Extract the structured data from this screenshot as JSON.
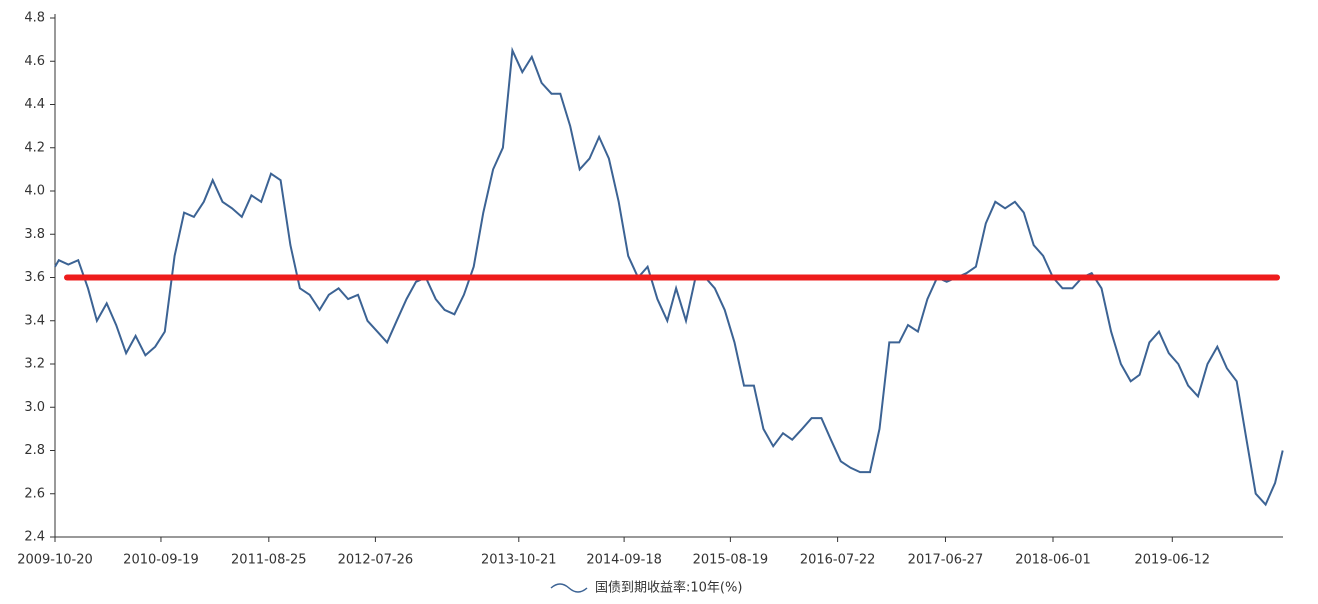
{
  "chart_data": {
    "type": "line",
    "x": [
      "2009-10-20",
      "2009-11-01",
      "2009-12-01",
      "2010-01-01",
      "2010-02-01",
      "2010-03-01",
      "2010-04-01",
      "2010-05-01",
      "2010-06-01",
      "2010-07-01",
      "2010-08-01",
      "2010-09-01",
      "2010-10-01",
      "2010-11-01",
      "2010-12-01",
      "2011-01-01",
      "2011-02-01",
      "2011-03-01",
      "2011-04-01",
      "2011-05-01",
      "2011-06-01",
      "2011-07-01",
      "2011-08-01",
      "2011-09-01",
      "2011-10-01",
      "2011-11-01",
      "2011-12-01",
      "2012-01-01",
      "2012-02-01",
      "2012-03-01",
      "2012-04-01",
      "2012-05-01",
      "2012-06-01",
      "2012-07-01",
      "2012-08-01",
      "2012-09-01",
      "2012-10-01",
      "2012-11-01",
      "2012-12-01",
      "2013-01-01",
      "2013-02-01",
      "2013-03-01",
      "2013-04-01",
      "2013-05-01",
      "2013-06-01",
      "2013-07-01",
      "2013-08-01",
      "2013-09-01",
      "2013-10-01",
      "2013-11-01",
      "2013-12-01",
      "2014-01-01",
      "2014-02-01",
      "2014-03-01",
      "2014-04-01",
      "2014-05-01",
      "2014-06-01",
      "2014-07-01",
      "2014-08-01",
      "2014-09-01",
      "2014-10-01",
      "2014-11-01",
      "2014-12-01",
      "2015-01-01",
      "2015-02-01",
      "2015-03-01",
      "2015-04-01",
      "2015-05-01",
      "2015-06-01",
      "2015-07-01",
      "2015-08-01",
      "2015-09-01",
      "2015-10-01",
      "2015-11-01",
      "2015-12-01",
      "2016-01-01",
      "2016-02-01",
      "2016-03-01",
      "2016-04-01",
      "2016-05-01",
      "2016-06-01",
      "2016-07-01",
      "2016-08-01",
      "2016-09-01",
      "2016-10-01",
      "2016-11-01",
      "2016-12-01",
      "2017-01-01",
      "2017-02-01",
      "2017-03-01",
      "2017-04-01",
      "2017-05-01",
      "2017-06-01",
      "2017-07-01",
      "2017-08-01",
      "2017-09-01",
      "2017-10-01",
      "2017-11-01",
      "2017-12-01",
      "2018-01-01",
      "2018-02-01",
      "2018-03-01",
      "2018-04-01",
      "2018-05-01",
      "2018-06-01",
      "2018-07-01",
      "2018-08-01",
      "2018-09-01",
      "2018-10-01",
      "2018-11-01",
      "2018-12-01",
      "2019-01-01",
      "2019-02-01",
      "2019-03-01",
      "2019-04-01",
      "2019-05-01",
      "2019-06-01",
      "2019-07-01",
      "2019-08-01",
      "2019-09-01",
      "2019-10-01",
      "2019-11-01",
      "2019-12-01",
      "2020-01-01",
      "2020-02-01",
      "2020-03-01",
      "2020-04-01",
      "2020-05-01",
      "2020-05-25"
    ],
    "series": [
      {
        "name": "国债到期收益率:10年(%)",
        "color": "#3c6394",
        "values": [
          3.65,
          3.68,
          3.66,
          3.68,
          3.55,
          3.4,
          3.48,
          3.38,
          3.25,
          3.33,
          3.24,
          3.28,
          3.35,
          3.7,
          3.9,
          3.88,
          3.95,
          4.05,
          3.95,
          3.92,
          3.88,
          3.98,
          3.95,
          4.08,
          4.05,
          3.75,
          3.55,
          3.52,
          3.45,
          3.52,
          3.55,
          3.5,
          3.52,
          3.4,
          3.35,
          3.3,
          3.4,
          3.5,
          3.58,
          3.6,
          3.5,
          3.45,
          3.43,
          3.52,
          3.65,
          3.9,
          4.1,
          4.2,
          4.65,
          4.55,
          4.62,
          4.5,
          4.45,
          4.45,
          4.3,
          4.1,
          4.15,
          4.25,
          4.15,
          3.95,
          3.7,
          3.6,
          3.65,
          3.5,
          3.4,
          3.55,
          3.4,
          3.6,
          3.6,
          3.55,
          3.45,
          3.3,
          3.1,
          3.1,
          2.9,
          2.82,
          2.88,
          2.85,
          2.9,
          2.95,
          2.95,
          2.85,
          2.75,
          2.72,
          2.7,
          2.7,
          2.9,
          3.3,
          3.3,
          3.38,
          3.35,
          3.5,
          3.6,
          3.58,
          3.6,
          3.62,
          3.65,
          3.85,
          3.95,
          3.92,
          3.95,
          3.9,
          3.75,
          3.7,
          3.6,
          3.55,
          3.55,
          3.6,
          3.62,
          3.55,
          3.35,
          3.2,
          3.12,
          3.15,
          3.3,
          3.35,
          3.25,
          3.2,
          3.1,
          3.05,
          3.2,
          3.28,
          3.18,
          3.12,
          2.85,
          2.6,
          2.55,
          2.65,
          2.8
        ]
      }
    ],
    "reference_line": {
      "value": 3.6,
      "color": "#ee1c1c"
    },
    "xlim": [
      "2009-10-20",
      "2020-05-26"
    ],
    "xticks": [
      "2009-10-20",
      "2010-09-19",
      "2011-08-25",
      "2012-07-26",
      "2013-10-21",
      "2014-09-18",
      "2015-08-19",
      "2016-07-22",
      "2017-06-27",
      "2018-06-01",
      "2019-06-12"
    ],
    "ylim": [
      2.4,
      4.8
    ],
    "yticks": [
      2.4,
      2.6,
      2.8,
      {
        "value": 3.0,
        "label": "3.0"
      },
      3.2,
      3.4,
      3.6,
      3.8,
      {
        "value": 4.0,
        "label": "4.0"
      },
      4.2,
      4.4,
      4.6,
      4.8
    ],
    "legend": "bottom"
  }
}
